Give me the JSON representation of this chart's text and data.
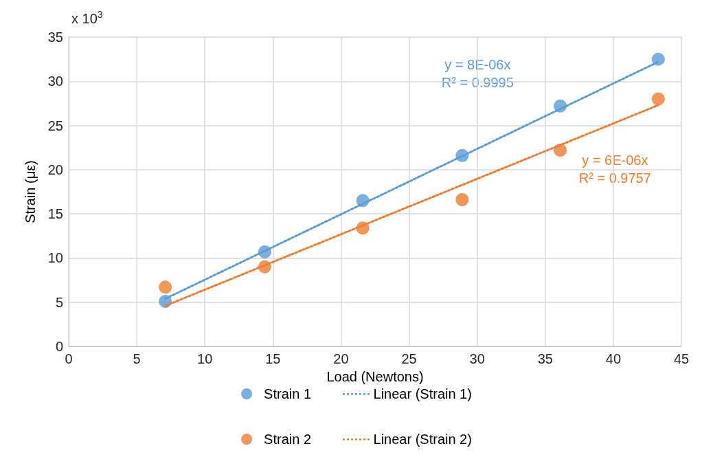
{
  "chart_data": {
    "type": "scatter",
    "xlabel": "Load (Newtons)",
    "ylabel": "Strain (με)",
    "xlim": [
      0,
      45
    ],
    "xticks": [
      0,
      5,
      10,
      15,
      20,
      25,
      30,
      35,
      40,
      45
    ],
    "ylim": [
      0,
      35
    ],
    "yticks": [
      0,
      5,
      10,
      15,
      20,
      25,
      30,
      35
    ],
    "grid": true,
    "legend": "bottom",
    "marker": "circle",
    "series": [
      {
        "name": "Strain 1",
        "color": "#5b9bd5",
        "x": [
          7.1,
          14.4,
          21.6,
          28.9,
          36.1,
          43.3
        ],
        "values": [
          5.1,
          10.7,
          16.5,
          21.6,
          27.2,
          32.5
        ]
      },
      {
        "name": "Strain 2",
        "color": "#ed7d31",
        "x": [
          7.1,
          14.4,
          21.6,
          28.9,
          36.1,
          43.3
        ],
        "values": [
          6.7,
          9.0,
          13.4,
          16.6,
          22.2,
          28.0
        ]
      },
      {
        "name": "Linear (Strain 1)",
        "type": "line",
        "color": "#5b9bd5",
        "marker": "none",
        "line_style": "dotted",
        "x": [
          7.1,
          43.3
        ],
        "values": [
          5.4,
          32.2
        ]
      },
      {
        "name": "Linear (Strain 2)",
        "type": "line",
        "color": "#ed7d31",
        "marker": "none",
        "line_style": "dotted",
        "x": [
          7.1,
          43.3
        ],
        "values": [
          4.6,
          27.3
        ]
      }
    ],
    "annotations": [
      "x 10$^{3}$",
      "y = 8E-06x\nR² = 0.9995",
      "y = 6E-06x\nR² = 0.9757"
    ]
  }
}
